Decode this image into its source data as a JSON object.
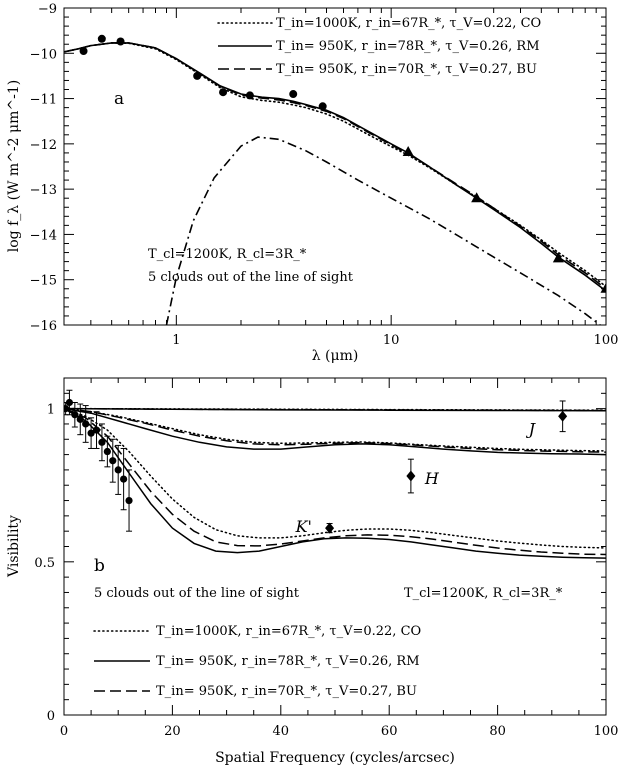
{
  "chart_data": [
    {
      "type": "line",
      "panel_label": "a",
      "xlabel": "λ (μm)",
      "ylabel": "log f_λ (W m^-2 μm^-1)",
      "xscale": "log",
      "xlim": [
        0.3,
        100
      ],
      "ylim": [
        -16,
        -9
      ],
      "xtick_labels": [
        "1",
        "10",
        "100"
      ],
      "ytick_labels": [
        "-9",
        "-10",
        "-11",
        "-12",
        "-13",
        "-14",
        "-15",
        "-16"
      ],
      "legend_position": "top-right",
      "legend": [
        {
          "key": "co",
          "style": "dotted",
          "text": "T_in=1000K, r_in=67R_*, τ_V=0.22, CO"
        },
        {
          "key": "rm",
          "style": "solid",
          "text": "T_in= 950K, r_in=78R_*, τ_V=0.26, RM"
        },
        {
          "key": "bu",
          "style": "dashed",
          "text": "T_in= 950K, r_in=70R_*, τ_V=0.27, BU"
        }
      ],
      "annotation": [
        "T_cl=1200K, R_cl=3R_*",
        "5 clouds out of the line of sight"
      ],
      "series": [
        {
          "key": "rm",
          "style": "solid",
          "x": [
            0.3,
            0.35,
            0.4,
            0.5,
            0.6,
            0.8,
            1.0,
            1.3,
            1.6,
            2.0,
            2.5,
            3.0,
            3.5,
            4.0,
            5.0,
            6.0,
            8.0,
            10,
            12,
            15,
            20,
            25,
            30,
            40,
            50,
            60,
            80,
            100
          ],
          "y": [
            -9.97,
            -9.9,
            -9.83,
            -9.77,
            -9.77,
            -9.88,
            -10.12,
            -10.45,
            -10.72,
            -10.9,
            -10.97,
            -11.0,
            -11.06,
            -11.13,
            -11.26,
            -11.42,
            -11.75,
            -12.0,
            -12.2,
            -12.5,
            -12.9,
            -13.2,
            -13.45,
            -13.85,
            -14.2,
            -14.5,
            -14.9,
            -15.25
          ]
        },
        {
          "key": "co",
          "style": "dotted",
          "x": [
            0.3,
            0.35,
            0.4,
            0.5,
            0.6,
            0.8,
            1.0,
            1.3,
            1.6,
            2.0,
            2.5,
            3.0,
            3.5,
            4.0,
            5.0,
            6.0,
            8.0,
            10,
            12,
            15,
            20,
            25,
            30,
            40,
            50,
            60,
            80,
            100
          ],
          "y": [
            -9.97,
            -9.9,
            -9.83,
            -9.77,
            -9.78,
            -9.9,
            -10.14,
            -10.48,
            -10.76,
            -10.96,
            -11.04,
            -11.08,
            -11.14,
            -11.2,
            -11.34,
            -11.5,
            -11.82,
            -12.06,
            -12.25,
            -12.52,
            -12.9,
            -13.18,
            -13.42,
            -13.8,
            -14.12,
            -14.4,
            -14.8,
            -15.15
          ]
        },
        {
          "key": "bu",
          "style": "dashed",
          "x": [
            0.3,
            0.35,
            0.4,
            0.5,
            0.6,
            0.8,
            1.0,
            1.3,
            1.6,
            2.0,
            2.5,
            3.0,
            3.5,
            4.0,
            5.0,
            6.0,
            8.0,
            10,
            12,
            15,
            20,
            25,
            30,
            40,
            50,
            60,
            80,
            100
          ],
          "y": [
            -9.97,
            -9.9,
            -9.83,
            -9.77,
            -9.77,
            -9.88,
            -10.12,
            -10.46,
            -10.73,
            -10.92,
            -10.99,
            -11.03,
            -11.09,
            -11.15,
            -11.28,
            -11.44,
            -11.77,
            -12.02,
            -12.22,
            -12.5,
            -12.88,
            -13.17,
            -13.42,
            -13.82,
            -14.15,
            -14.45,
            -14.85,
            -15.2
          ]
        },
        {
          "key": "cloud",
          "style": "dashdot",
          "x": [
            0.9,
            1.0,
            1.2,
            1.5,
            2.0,
            2.4,
            3.0,
            4.0,
            5.0,
            7.0,
            10,
            15,
            20,
            30,
            40,
            60,
            80,
            100
          ],
          "y": [
            -16.0,
            -14.95,
            -13.7,
            -12.75,
            -12.05,
            -11.85,
            -11.9,
            -12.15,
            -12.4,
            -12.8,
            -13.2,
            -13.65,
            -14.0,
            -14.5,
            -14.85,
            -15.35,
            -15.75,
            -16.1
          ]
        }
      ],
      "markers": [
        {
          "shape": "circle",
          "x": [
            0.37,
            0.45,
            0.55,
            1.25,
            1.65,
            2.2,
            3.5,
            4.8
          ],
          "y": [
            -9.95,
            -9.68,
            -9.74,
            -10.5,
            -10.86,
            -10.93,
            -10.9,
            -11.17
          ]
        },
        {
          "shape": "triangle",
          "x": [
            12,
            25,
            60,
            100
          ],
          "y": [
            -12.18,
            -13.2,
            -14.53,
            -15.2
          ]
        }
      ]
    },
    {
      "type": "line",
      "panel_label": "b",
      "xlabel": "Spatial Frequency (cycles/arcsec)",
      "ylabel": "Visibility",
      "xlim": [
        0,
        100
      ],
      "ylim": [
        0,
        1.1
      ],
      "xtick_labels": [
        "0",
        "20",
        "40",
        "60",
        "80",
        "100"
      ],
      "ytick_labels": [
        "0",
        "0.5",
        "1"
      ],
      "legend_position": "bottom-left",
      "annotation": "5 clouds out of the line of sight",
      "annotation_right": "T_cl=1200K, R_cl=3R_*",
      "legend": [
        {
          "key": "co",
          "style": "dotted",
          "text": "T_in=1000K, r_in=67R_*, τ_V=0.22, CO"
        },
        {
          "key": "rm",
          "style": "solid",
          "text": "T_in= 950K, r_in=78R_*, τ_V=0.26, RM"
        },
        {
          "key": "bu",
          "style": "dashed",
          "text": "T_in= 950K, r_in=70R_*, τ_V=0.27, BU"
        }
      ],
      "series": [
        {
          "band": "J",
          "key": "rm",
          "style": "solid",
          "x": [
            0,
            20,
            40,
            60,
            80,
            100
          ],
          "y": [
            1.0,
            0.998,
            0.996,
            0.995,
            0.994,
            0.993
          ]
        },
        {
          "band": "J",
          "key": "co",
          "style": "dotted",
          "x": [
            0,
            20,
            40,
            60,
            80,
            100
          ],
          "y": [
            1.0,
            0.999,
            0.998,
            0.997,
            0.996,
            0.995
          ]
        },
        {
          "band": "J",
          "key": "bu",
          "style": "dashed",
          "x": [
            0,
            20,
            40,
            60,
            80,
            100
          ],
          "y": [
            1.0,
            0.998,
            0.997,
            0.996,
            0.995,
            0.994
          ]
        },
        {
          "band": "H",
          "key": "rm",
          "style": "solid",
          "x": [
            0,
            5,
            10,
            15,
            20,
            25,
            30,
            35,
            40,
            45,
            50,
            55,
            60,
            65,
            70,
            75,
            80,
            85,
            90,
            95,
            100
          ],
          "y": [
            1.0,
            0.985,
            0.96,
            0.935,
            0.91,
            0.89,
            0.875,
            0.868,
            0.868,
            0.875,
            0.882,
            0.885,
            0.882,
            0.875,
            0.868,
            0.862,
            0.857,
            0.855,
            0.853,
            0.852,
            0.85
          ]
        },
        {
          "band": "H",
          "key": "co",
          "style": "dotted",
          "x": [
            0,
            5,
            10,
            15,
            20,
            25,
            30,
            35,
            40,
            45,
            50,
            55,
            60,
            65,
            70,
            75,
            80,
            85,
            90,
            95,
            100
          ],
          "y": [
            1.0,
            0.99,
            0.975,
            0.955,
            0.935,
            0.915,
            0.9,
            0.89,
            0.887,
            0.888,
            0.89,
            0.891,
            0.888,
            0.883,
            0.878,
            0.874,
            0.87,
            0.867,
            0.865,
            0.863,
            0.862
          ]
        },
        {
          "band": "H",
          "key": "bu",
          "style": "dashed",
          "x": [
            0,
            5,
            10,
            15,
            20,
            25,
            30,
            35,
            40,
            45,
            50,
            55,
            60,
            65,
            70,
            75,
            80,
            85,
            90,
            95,
            100
          ],
          "y": [
            1.0,
            0.99,
            0.972,
            0.952,
            0.93,
            0.91,
            0.895,
            0.885,
            0.882,
            0.884,
            0.887,
            0.889,
            0.886,
            0.881,
            0.875,
            0.87,
            0.866,
            0.863,
            0.861,
            0.859,
            0.858
          ]
        },
        {
          "band": "K'",
          "key": "rm",
          "style": "solid",
          "x": [
            0,
            4,
            8,
            12,
            16,
            20,
            24,
            28,
            32,
            36,
            40,
            44,
            48,
            52,
            56,
            60,
            64,
            68,
            72,
            76,
            80,
            84,
            88,
            92,
            96,
            100
          ],
          "y": [
            1.0,
            0.96,
            0.89,
            0.79,
            0.69,
            0.61,
            0.56,
            0.535,
            0.53,
            0.535,
            0.55,
            0.565,
            0.575,
            0.578,
            0.577,
            0.573,
            0.565,
            0.555,
            0.545,
            0.535,
            0.528,
            0.522,
            0.518,
            0.515,
            0.513,
            0.512
          ]
        },
        {
          "band": "K'",
          "key": "co",
          "style": "dotted",
          "x": [
            0,
            4,
            8,
            12,
            16,
            20,
            24,
            28,
            32,
            36,
            40,
            44,
            48,
            52,
            56,
            60,
            64,
            68,
            72,
            76,
            80,
            84,
            88,
            92,
            96,
            100
          ],
          "y": [
            1.0,
            0.975,
            0.93,
            0.86,
            0.78,
            0.705,
            0.645,
            0.605,
            0.585,
            0.578,
            0.578,
            0.585,
            0.595,
            0.603,
            0.607,
            0.607,
            0.603,
            0.595,
            0.586,
            0.577,
            0.568,
            0.561,
            0.555,
            0.55,
            0.547,
            0.545
          ]
        },
        {
          "band": "K'",
          "key": "bu",
          "style": "dashed",
          "x": [
            0,
            4,
            8,
            12,
            16,
            20,
            24,
            28,
            32,
            36,
            40,
            44,
            48,
            52,
            56,
            60,
            64,
            68,
            72,
            76,
            80,
            84,
            88,
            92,
            96,
            100
          ],
          "y": [
            1.0,
            0.97,
            0.91,
            0.82,
            0.73,
            0.655,
            0.6,
            0.565,
            0.553,
            0.552,
            0.558,
            0.568,
            0.578,
            0.585,
            0.588,
            0.587,
            0.582,
            0.574,
            0.564,
            0.554,
            0.545,
            0.538,
            0.532,
            0.528,
            0.525,
            0.524
          ]
        }
      ],
      "points": {
        "x": [
          0.3,
          1.0,
          2.0,
          3.0,
          4.0,
          5.0,
          6.0,
          7.0,
          8.0,
          9.0,
          10.0,
          11.0,
          12.0
        ],
        "y": [
          1.0,
          1.02,
          0.98,
          0.965,
          0.95,
          0.92,
          0.93,
          0.89,
          0.86,
          0.83,
          0.8,
          0.77,
          0.7
        ],
        "err": [
          0.02,
          0.04,
          0.04,
          0.05,
          0.06,
          0.05,
          0.06,
          0.06,
          0.05,
          0.07,
          0.08,
          0.1,
          0.1
        ]
      },
      "diamonds": [
        {
          "label": "J",
          "x": 92,
          "y": 0.975,
          "err": 0.05
        },
        {
          "label": "H",
          "x": 64,
          "y": 0.78,
          "err": 0.055
        },
        {
          "label": "K'",
          "x": 49,
          "y": 0.61,
          "err": 0.015
        }
      ]
    }
  ]
}
